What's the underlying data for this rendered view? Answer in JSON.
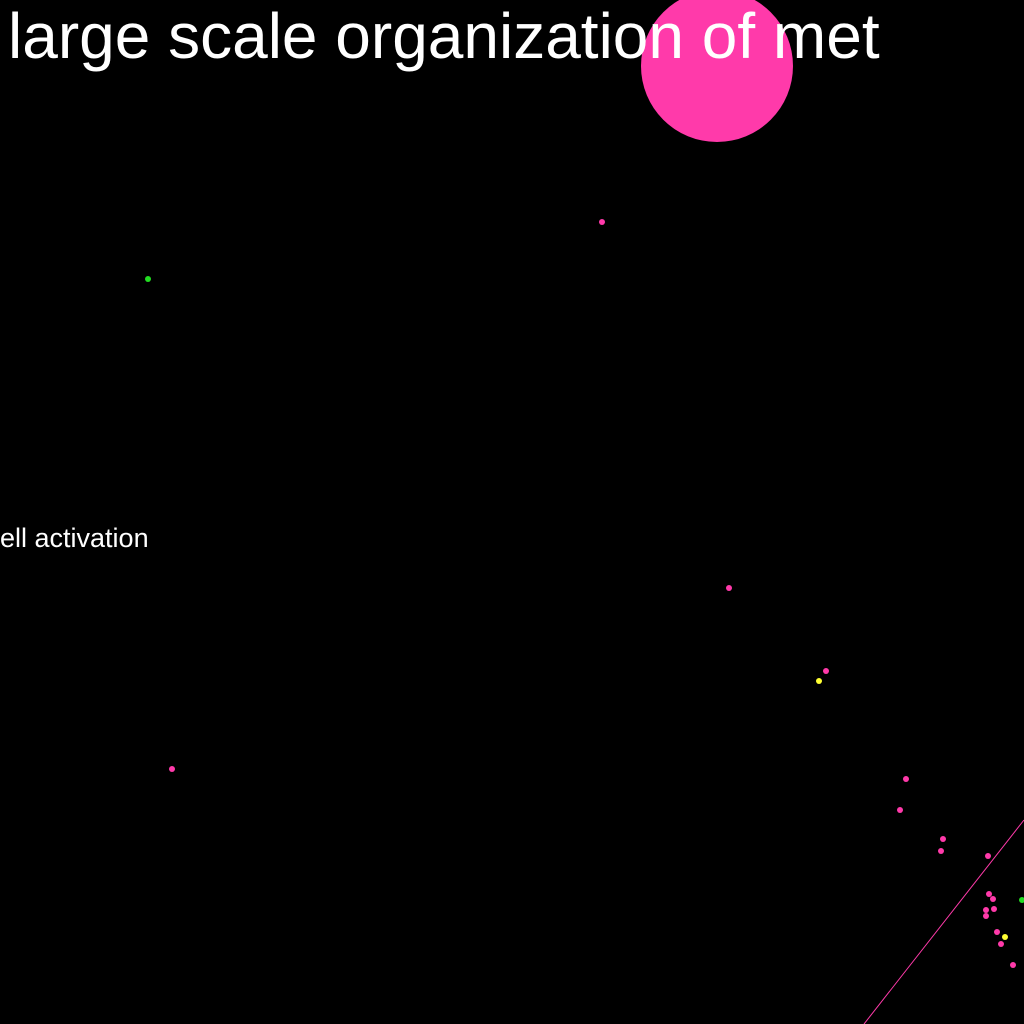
{
  "labels": {
    "title": "large scale organization of met",
    "subtitle": "ell activation"
  },
  "colors": {
    "background": "#000000",
    "label": "#ffffff",
    "pink": "#ff3aaa",
    "green": "#22dd22",
    "yellow": "#ffff33",
    "edge": "#ff3aaa"
  }
}
